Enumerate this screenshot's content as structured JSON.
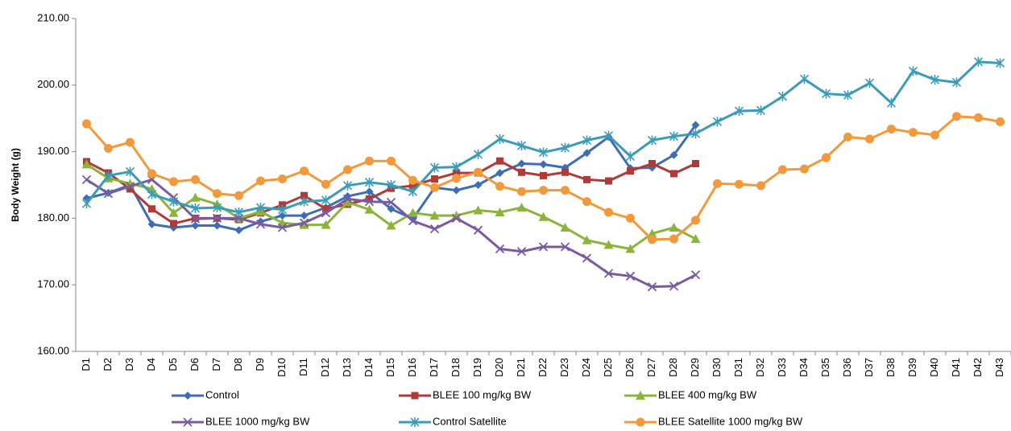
{
  "chart_data": {
    "type": "line",
    "y_label": "Body Weight (g)",
    "categories": [
      "D1",
      "D2",
      "D3",
      "D4",
      "D5",
      "D6",
      "D7",
      "D8",
      "D9",
      "D10",
      "D11",
      "D12",
      "D13",
      "D14",
      "D15",
      "D16",
      "D17",
      "D18",
      "D19",
      "D20",
      "D21",
      "D22",
      "D23",
      "D24",
      "D25",
      "D26",
      "D27",
      "D28",
      "D29",
      "D30",
      "D31",
      "D32",
      "D33",
      "D34",
      "D35",
      "D36",
      "D37",
      "D38",
      "D39",
      "D40",
      "D41",
      "D42",
      "D43"
    ],
    "ylim": [
      160,
      210
    ],
    "yticks": [
      {
        "value": 160,
        "label": "160.00"
      },
      {
        "value": 170,
        "label": "170.00"
      },
      {
        "value": 180,
        "label": "180.00"
      },
      {
        "value": 190,
        "label": "190.00"
      },
      {
        "value": 200,
        "label": "200.00"
      },
      {
        "value": 210,
        "label": "210.00"
      }
    ],
    "grid": false,
    "legend": "bottom",
    "series": [
      {
        "name": "Control",
        "color": "#3d6db5",
        "marker": "diamond",
        "values": [
          183,
          183.8,
          185,
          179.1,
          178.6,
          178.9,
          178.9,
          178.2,
          179.5,
          180.4,
          180.4,
          181.6,
          183.3,
          184,
          181.4,
          179.9,
          184.6,
          184.2,
          185,
          186.8,
          188.2,
          188.1,
          187.6,
          189.8,
          192.2,
          187.5,
          187.6,
          189.5,
          194,
          null,
          null,
          null,
          null,
          null,
          null,
          null,
          null,
          null,
          null,
          null,
          null,
          null,
          null
        ]
      },
      {
        "name": "BLEE 100 mg/kg BW",
        "color": "#b03a38",
        "marker": "square",
        "values": [
          188.5,
          186.8,
          184.4,
          181.4,
          179.2,
          180,
          180,
          179.8,
          180.8,
          182,
          183.4,
          181.4,
          182.1,
          182.9,
          184.5,
          184.9,
          185.9,
          186.8,
          186.8,
          188.6,
          186.9,
          186.4,
          186.9,
          185.8,
          185.6,
          187.1,
          188.2,
          186.7,
          188.2,
          null,
          null,
          null,
          null,
          null,
          null,
          null,
          null,
          null,
          null,
          null,
          null,
          null,
          null
        ]
      },
      {
        "name": "BLEE 400 mg/kg BW",
        "color": "#8cb43a",
        "marker": "triangle",
        "values": [
          188.1,
          186,
          185.2,
          184.4,
          180.8,
          183.1,
          182.1,
          180,
          181,
          179.3,
          179,
          179,
          182.4,
          181.3,
          178.9,
          180.8,
          180.4,
          180.4,
          181.2,
          180.9,
          181.6,
          180.2,
          178.6,
          176.7,
          176,
          175.4,
          177.7,
          178.6,
          176.9,
          null,
          null,
          null,
          null,
          null,
          null,
          null,
          null,
          null,
          null,
          null,
          null,
          null,
          null
        ]
      },
      {
        "name": "BLEE 1000 mg/kg BW",
        "color": "#7b5b9f",
        "marker": "x",
        "values": [
          185.8,
          183.7,
          184.8,
          185.8,
          183.1,
          179.9,
          180,
          180,
          179.1,
          178.6,
          179.3,
          180.8,
          182.9,
          182.5,
          182.4,
          179.6,
          178.4,
          180,
          178.2,
          175.4,
          175,
          175.7,
          175.7,
          174,
          171.7,
          171.3,
          169.7,
          169.8,
          171.5,
          null,
          null,
          null,
          null,
          null,
          null,
          null,
          null,
          null,
          null,
          null,
          null,
          null,
          null
        ]
      },
      {
        "name": "Control Satellite",
        "color": "#3a9cb6",
        "marker": "asterisk",
        "values": [
          182.2,
          186.4,
          187,
          183.6,
          182.5,
          181.5,
          181.6,
          180.9,
          181.6,
          181.3,
          182.5,
          182.7,
          184.9,
          185.4,
          185,
          184,
          187.6,
          187.7,
          189.6,
          191.9,
          190.9,
          189.9,
          190.6,
          191.7,
          192.4,
          189.3,
          191.7,
          192.3,
          192.7,
          194.5,
          196.1,
          196.2,
          198.3,
          200.9,
          198.7,
          198.5,
          200.3,
          197.3,
          202.1,
          200.8,
          200.4,
          203.5,
          203.3
        ]
      },
      {
        "name": "BLEE Satellite 1000 mg/kg BW",
        "color": "#f29a3b",
        "marker": "circle",
        "values": [
          194.2,
          190.5,
          191.4,
          186.7,
          185.5,
          185.8,
          183.7,
          183.4,
          185.6,
          185.9,
          187.1,
          185.1,
          187.3,
          188.6,
          188.6,
          185.7,
          184.6,
          186,
          186.9,
          184.8,
          184,
          184.2,
          184.2,
          182.5,
          180.9,
          180,
          176.8,
          176.9,
          179.7,
          185.2,
          185.1,
          184.9,
          187.3,
          187.4,
          189.1,
          192.2,
          191.9,
          193.4,
          192.9,
          192.5,
          195.3,
          195.1,
          194.5
        ]
      }
    ]
  }
}
